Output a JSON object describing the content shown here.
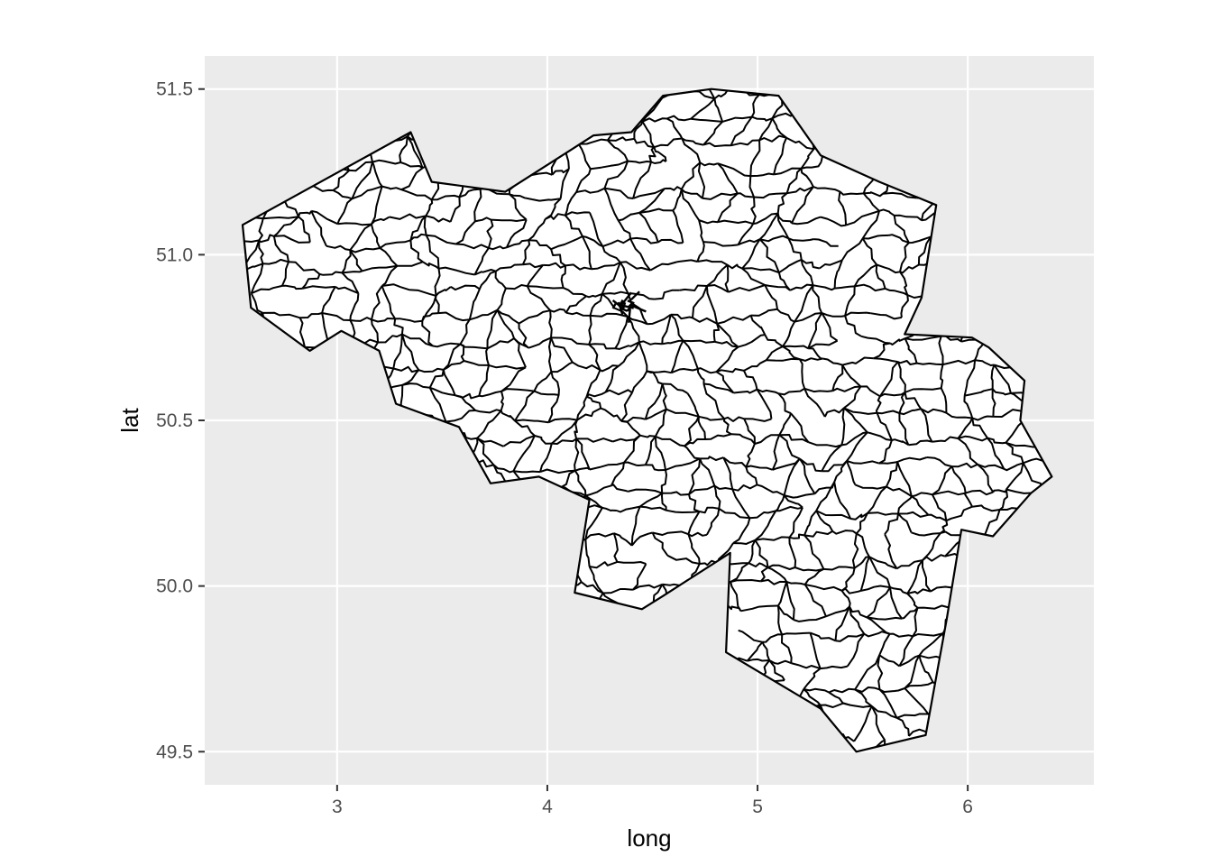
{
  "chart_data": {
    "type": "map",
    "title": "",
    "xlabel": "long",
    "ylabel": "lat",
    "xlim": [
      2.37,
      6.6
    ],
    "ylim": [
      49.4,
      51.6
    ],
    "x_ticks": [
      3,
      4,
      5,
      6
    ],
    "y_ticks": [
      49.5,
      50.0,
      50.5,
      51.0,
      51.5
    ],
    "x_tick_labels": [
      "3",
      "4",
      "5",
      "6"
    ],
    "y_tick_labels": [
      "49.5",
      "50.0",
      "50.5",
      "51.0",
      "51.5"
    ],
    "grid": true,
    "legend": "none",
    "region": "Belgium (municipal boundaries)",
    "outline": [
      [
        2.55,
        51.09
      ],
      [
        3.35,
        51.37
      ],
      [
        3.45,
        51.22
      ],
      [
        3.8,
        51.19
      ],
      [
        4.22,
        51.36
      ],
      [
        4.4,
        51.37
      ],
      [
        4.55,
        51.48
      ],
      [
        4.78,
        51.5
      ],
      [
        5.1,
        51.48
      ],
      [
        5.3,
        51.3
      ],
      [
        5.58,
        51.22
      ],
      [
        5.85,
        51.15
      ],
      [
        5.78,
        50.87
      ],
      [
        5.7,
        50.76
      ],
      [
        6.02,
        50.75
      ],
      [
        6.1,
        50.72
      ],
      [
        6.27,
        50.62
      ],
      [
        6.25,
        50.5
      ],
      [
        6.4,
        50.33
      ],
      [
        6.3,
        50.28
      ],
      [
        6.12,
        50.15
      ],
      [
        5.97,
        50.17
      ],
      [
        5.9,
        49.9
      ],
      [
        5.8,
        49.55
      ],
      [
        5.47,
        49.5
      ],
      [
        5.3,
        49.63
      ],
      [
        4.85,
        49.8
      ],
      [
        4.87,
        50.1
      ],
      [
        4.55,
        49.97
      ],
      [
        4.45,
        49.93
      ],
      [
        4.13,
        49.98
      ],
      [
        4.2,
        50.26
      ],
      [
        3.96,
        50.33
      ],
      [
        3.73,
        50.31
      ],
      [
        3.58,
        50.48
      ],
      [
        3.28,
        50.55
      ],
      [
        3.2,
        50.71
      ],
      [
        3.02,
        50.77
      ],
      [
        2.87,
        50.71
      ],
      [
        2.59,
        50.84
      ],
      [
        2.55,
        51.09
      ]
    ],
    "grid_step_deg": 0.12,
    "line_color": "#000000",
    "fill_color": "#ffffff",
    "panel_color": "#ebebeb",
    "grid_color": "#ffffff",
    "tick_color": "#333333"
  }
}
